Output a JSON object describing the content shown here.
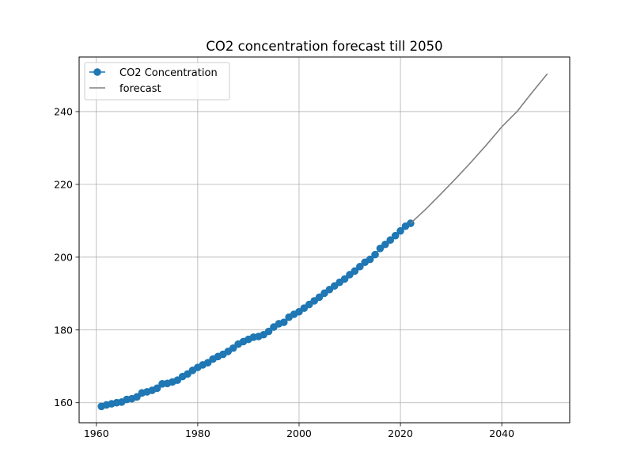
{
  "chart_data": {
    "type": "line",
    "title": "CO2 concentration forecast till 2050",
    "xlabel": "",
    "ylabel": "",
    "xlim": [
      1956.6,
      2053.4
    ],
    "ylim": [
      154.5,
      255.0
    ],
    "grid": true,
    "legend_position": "upper-left",
    "x_ticks": [
      1960,
      1980,
      2000,
      2020,
      2040
    ],
    "x_tick_labels": [
      "1960",
      "1980",
      "2000",
      "2020",
      "2040"
    ],
    "y_ticks": [
      160,
      180,
      200,
      220,
      240
    ],
    "y_tick_labels": [
      "160",
      "180",
      "200",
      "220",
      "240"
    ],
    "series": [
      {
        "name": "CO2 Concentration",
        "style": "line-marker",
        "color": "#1f77b4",
        "x": [
          1961,
          1962,
          1963,
          1964,
          1965,
          1966,
          1967,
          1968,
          1969,
          1970,
          1971,
          1972,
          1973,
          1974,
          1975,
          1976,
          1977,
          1978,
          1979,
          1980,
          1981,
          1982,
          1983,
          1984,
          1985,
          1986,
          1987,
          1988,
          1989,
          1990,
          1991,
          1992,
          1993,
          1994,
          1995,
          1996,
          1997,
          1998,
          1999,
          2000,
          2001,
          2002,
          2003,
          2004,
          2005,
          2006,
          2007,
          2008,
          2009,
          2010,
          2011,
          2012,
          2013,
          2014,
          2015,
          2016,
          2017,
          2018,
          2019,
          2020,
          2021,
          2022
        ],
        "y": [
          159.0,
          159.4,
          159.7,
          160.0,
          160.2,
          160.9,
          161.1,
          161.6,
          162.7,
          163.0,
          163.4,
          164.0,
          165.2,
          165.3,
          165.7,
          166.2,
          167.2,
          167.9,
          168.9,
          169.7,
          170.4,
          171.0,
          172.0,
          172.7,
          173.3,
          174.1,
          175.0,
          176.1,
          176.8,
          177.4,
          178.0,
          178.2,
          178.7,
          179.6,
          180.8,
          181.7,
          182.1,
          183.5,
          184.3,
          185.0,
          186.0,
          187.0,
          188.0,
          189.0,
          190.1,
          191.1,
          192.1,
          193.1,
          194.0,
          195.2,
          196.2,
          197.4,
          198.6,
          199.4,
          200.7,
          202.4,
          203.5,
          204.7,
          205.9,
          207.2,
          208.5,
          209.3
        ]
      },
      {
        "name": "forecast",
        "style": "line",
        "color": "#808080",
        "x": [
          2022,
          2025,
          2028,
          2031,
          2034,
          2037,
          2040,
          2043,
          2046,
          2049
        ],
        "y": [
          209.3,
          213.2,
          217.4,
          221.7,
          226.2,
          230.9,
          235.8,
          240.0,
          245.3,
          250.4
        ]
      }
    ]
  }
}
